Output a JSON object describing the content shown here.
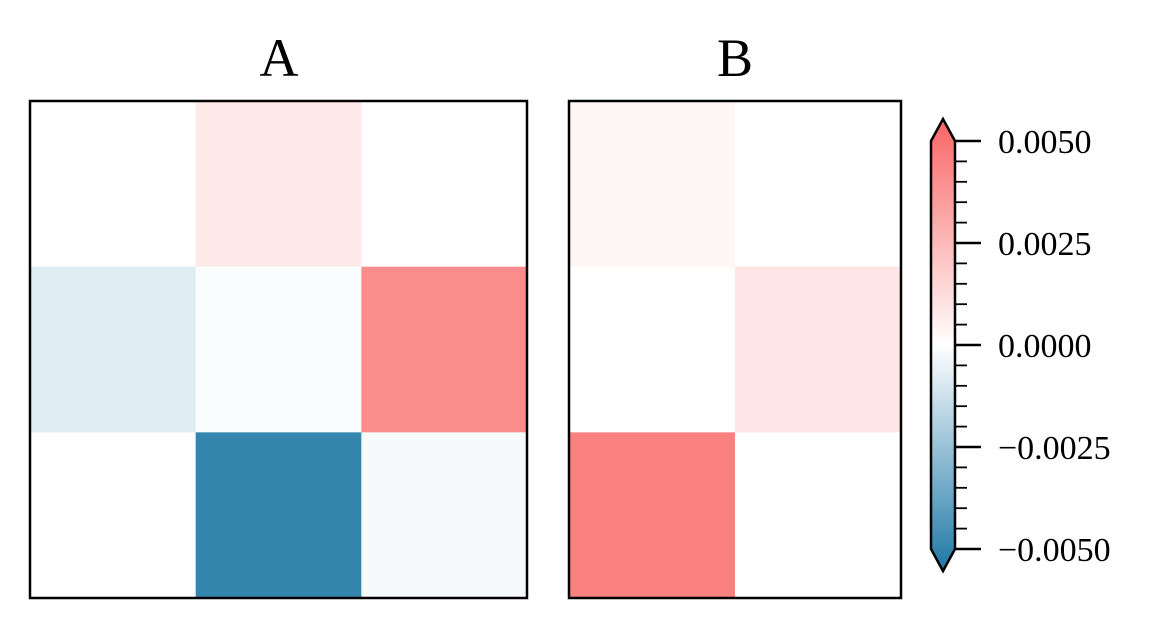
{
  "chart_data": [
    {
      "type": "heatmap",
      "title": "A",
      "rows": 3,
      "cols": 3,
      "values": [
        [
          0.0,
          0.0007,
          0.0
        ],
        [
          -0.0007,
          -0.0001,
          0.0037
        ],
        [
          0.0,
          -0.0045,
          -0.0002
        ]
      ]
    },
    {
      "type": "heatmap",
      "title": "B",
      "rows": 3,
      "cols": 2,
      "values": [
        [
          0.0003,
          0.0
        ],
        [
          0.0,
          0.0008
        ],
        [
          0.0041,
          0.0
        ]
      ]
    }
  ],
  "colorbar": {
    "vmin": -0.005,
    "vmax": 0.005,
    "ticks": [
      0.005,
      0.0025,
      0.0,
      -0.0025,
      -0.005
    ],
    "tick_labels": [
      "0.0050",
      "0.0025",
      "0.0000",
      "−0.0025",
      "−0.0050"
    ],
    "extend": "both",
    "colors": {
      "negative": "#1f78a6",
      "center": "#ffffff",
      "positive": "#fa6464"
    }
  }
}
